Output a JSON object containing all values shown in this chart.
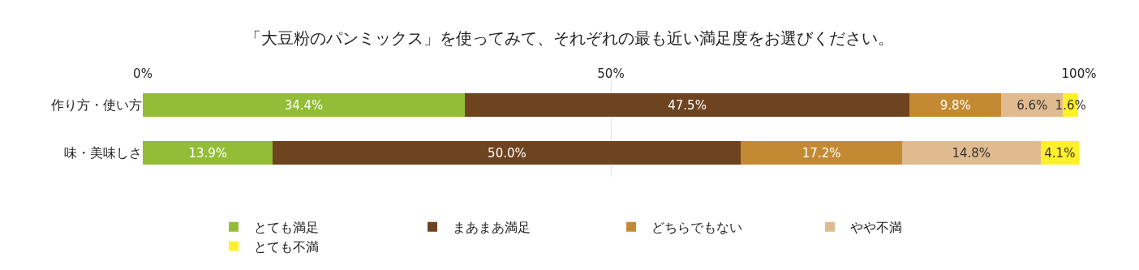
{
  "chart_data": {
    "type": "bar",
    "orientation": "horizontal",
    "stacked": true,
    "title": "「大豆粉のパンミックス」を使ってみて、それぞれの最も近い満足度をお選びください。",
    "categories": [
      "作り方・使い方",
      "味・美味しさ"
    ],
    "series": [
      {
        "name": "とても満足",
        "color": "#93bd37",
        "values": [
          34.4,
          13.9
        ],
        "value_labels": [
          "34.4%",
          "13.9%"
        ]
      },
      {
        "name": "まあまあ満足",
        "color": "#6e4320",
        "values": [
          47.5,
          50.0
        ],
        "value_labels": [
          "47.5%",
          "50.0%"
        ]
      },
      {
        "name": "どちらでもない",
        "color": "#c48a33",
        "values": [
          9.8,
          17.2
        ],
        "value_labels": [
          "9.8%",
          "17.2%"
        ]
      },
      {
        "name": "やや不満",
        "color": "#dfbb8f",
        "values": [
          6.6,
          14.8
        ],
        "value_labels": [
          "6.6%",
          "14.8%"
        ]
      },
      {
        "name": "とても不満",
        "color": "#fff02a",
        "values": [
          1.6,
          4.1
        ],
        "value_labels": [
          "1.6%",
          "4.1%"
        ]
      }
    ],
    "xlim": [
      0,
      100
    ],
    "xticks": [
      {
        "value": 0,
        "label": "0%"
      },
      {
        "value": 50,
        "label": "50%"
      },
      {
        "value": 100,
        "label": "100%"
      }
    ],
    "grid": "x",
    "legend": "bottom"
  }
}
